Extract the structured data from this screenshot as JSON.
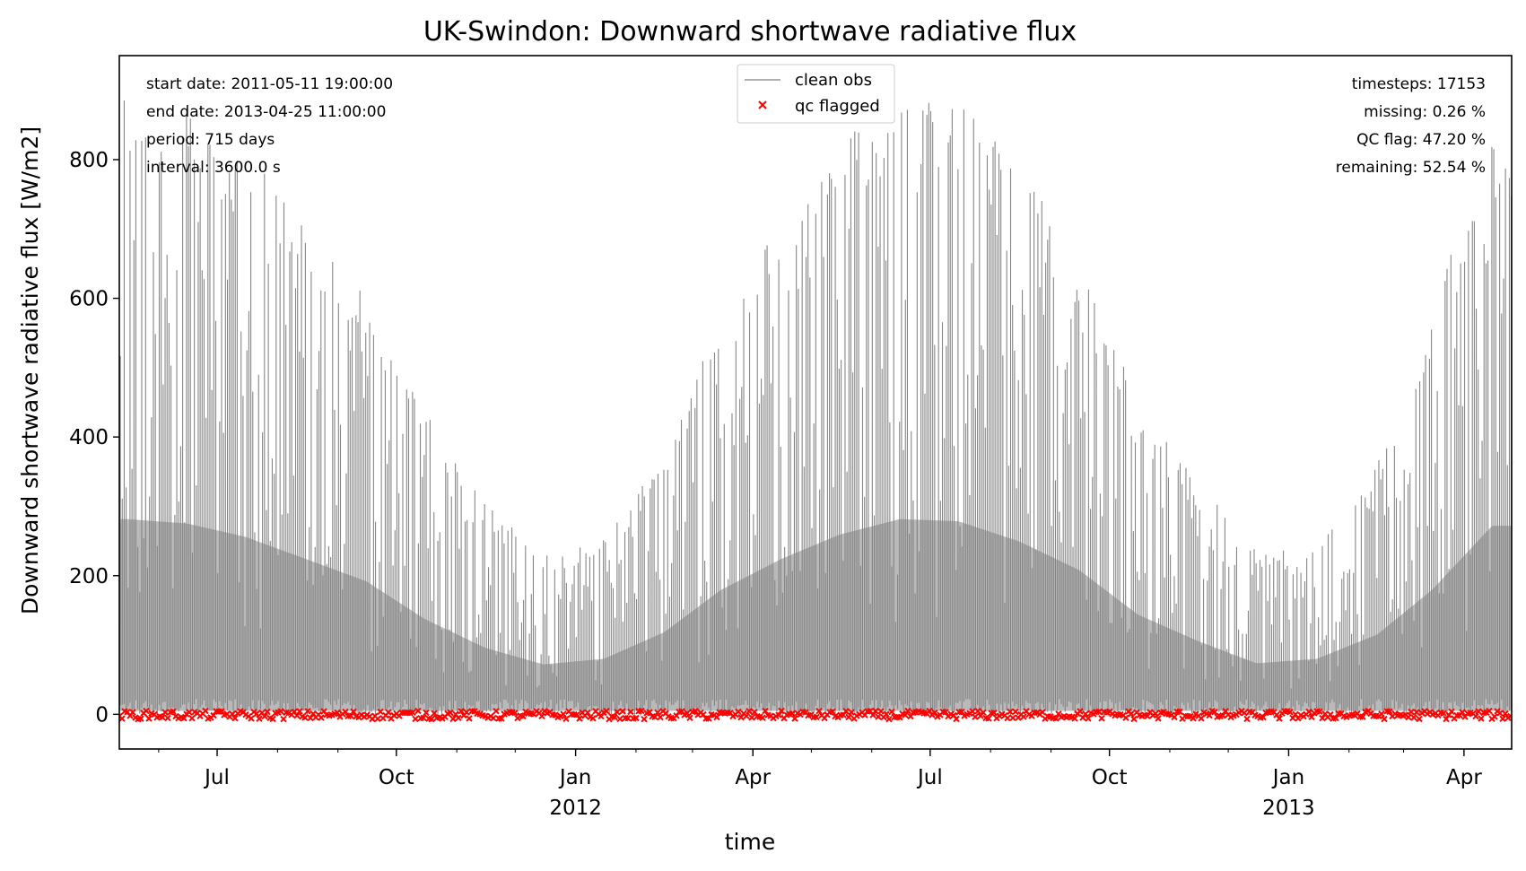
{
  "chart_data": {
    "type": "line",
    "title": "UK-Swindon: Downward shortwave radiative flux",
    "xlabel": "time",
    "ylabel": "Downward shortwave radiative flux [W/m2]",
    "x_range": [
      "2011-05-11 19:00:00",
      "2013-04-25 11:00:00"
    ],
    "ylim": [
      -50,
      950
    ],
    "yticks": [
      0,
      200,
      400,
      600,
      800
    ],
    "xticks": [
      {
        "date": "2011-07-01",
        "label": "Jul",
        "year_label": ""
      },
      {
        "date": "2011-10-01",
        "label": "Oct",
        "year_label": ""
      },
      {
        "date": "2012-01-01",
        "label": "Jan",
        "year_label": "2012"
      },
      {
        "date": "2012-04-01",
        "label": "Apr",
        "year_label": ""
      },
      {
        "date": "2012-07-01",
        "label": "Jul",
        "year_label": ""
      },
      {
        "date": "2012-10-01",
        "label": "Oct",
        "year_label": ""
      },
      {
        "date": "2013-01-01",
        "label": "Jan",
        "year_label": "2013"
      },
      {
        "date": "2013-04-01",
        "label": "Apr",
        "year_label": ""
      }
    ],
    "minor_xtick_interval": "month",
    "grid": false,
    "legend_position": "top-center",
    "series": [
      {
        "name": "clean obs",
        "style": "line",
        "color": "#808080",
        "description_points": [
          {
            "date": "2011-05-15",
            "peak": 880
          },
          {
            "date": "2011-06-15",
            "peak": 860
          },
          {
            "date": "2011-07-15",
            "peak": 800
          },
          {
            "date": "2011-08-15",
            "peak": 700
          },
          {
            "date": "2011-09-15",
            "peak": 600
          },
          {
            "date": "2011-10-15",
            "peak": 430
          },
          {
            "date": "2011-11-15",
            "peak": 300
          },
          {
            "date": "2011-12-15",
            "peak": 225
          },
          {
            "date": "2012-01-15",
            "peak": 250
          },
          {
            "date": "2012-02-15",
            "peak": 370
          },
          {
            "date": "2012-03-15",
            "peak": 560
          },
          {
            "date": "2012-04-15",
            "peak": 700
          },
          {
            "date": "2012-05-15",
            "peak": 810
          },
          {
            "date": "2012-06-15",
            "peak": 880
          },
          {
            "date": "2012-07-15",
            "peak": 870
          },
          {
            "date": "2012-08-15",
            "peak": 780
          },
          {
            "date": "2012-09-15",
            "peak": 650
          },
          {
            "date": "2012-10-15",
            "peak": 450
          },
          {
            "date": "2012-11-15",
            "peak": 330
          },
          {
            "date": "2012-12-15",
            "peak": 230
          },
          {
            "date": "2013-01-15",
            "peak": 250
          },
          {
            "date": "2013-02-15",
            "peak": 360
          },
          {
            "date": "2013-03-15",
            "peak": 560
          },
          {
            "date": "2013-04-15",
            "peak": 850
          }
        ]
      },
      {
        "name": "qc flagged",
        "style": "marker-x",
        "color": "#ff0000",
        "value_band": [
          -7,
          5
        ]
      }
    ],
    "annotations_left": [
      "start date: 2011-05-11 19:00:00",
      "end date: 2013-04-25 11:00:00",
      "period: 715 days",
      "interval: 3600.0 s"
    ],
    "annotations_right": [
      "timesteps: 17153",
      "missing: 0.26 %",
      "QC flag: 47.20 %",
      "remaining: 52.54 %"
    ]
  }
}
